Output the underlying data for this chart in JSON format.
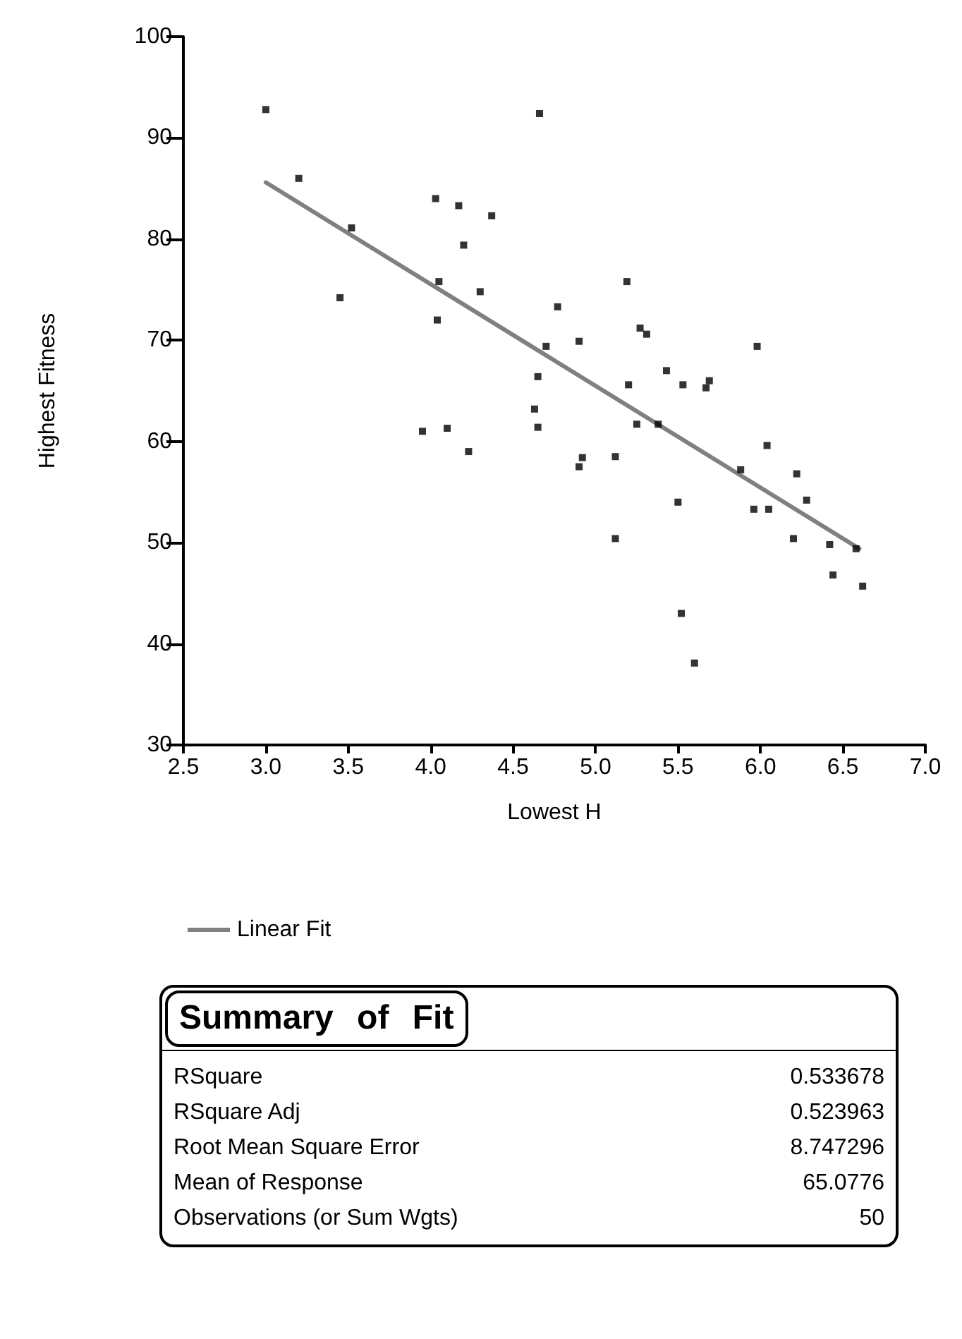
{
  "chart_data": [
    {
      "type": "scatter",
      "xlabel": "Lowest H",
      "ylabel": "Highest Fitness",
      "marker": "square",
      "grid": false,
      "legend": "bottom left",
      "xlim": [
        2.5,
        7.0
      ],
      "xticks": [
        {
          "value": 2.5,
          "label": "2.5"
        },
        {
          "value": 3,
          "label": "3.0"
        },
        {
          "value": 3.5,
          "label": "3.5"
        },
        {
          "value": 4,
          "label": "4.0"
        },
        {
          "value": 4.5,
          "label": "4.5"
        },
        {
          "value": 5,
          "label": "5.0"
        },
        {
          "value": 5.5,
          "label": "5.5"
        },
        {
          "value": 6,
          "label": "6.0"
        },
        {
          "value": 6.5,
          "label": "6.5"
        },
        {
          "value": 7,
          "label": "7.0"
        }
      ],
      "ylim": [
        30,
        100
      ],
      "yticks": [
        30,
        40,
        50,
        60,
        70,
        80,
        90,
        100
      ],
      "series": [
        {
          "color": "#000000",
          "x": [
            3.0,
            3.2,
            3.52,
            3.45,
            3.95,
            4.03,
            4.05,
            4.04,
            4.1,
            4.17,
            4.2,
            4.23,
            4.3,
            4.37,
            4.63,
            4.65,
            4.65,
            4.66,
            4.7,
            4.77,
            4.9,
            4.9,
            4.92,
            5.12,
            5.12,
            5.19,
            5.2,
            5.25,
            5.27,
            5.31,
            5.38,
            5.43,
            5.5,
            5.53,
            5.52,
            5.6,
            5.67,
            5.69,
            5.88,
            5.98,
            5.96,
            6.04,
            6.05,
            6.2,
            6.22,
            6.28,
            6.42,
            6.44,
            6.58,
            6.62
          ],
          "values": [
            92.8,
            86.0,
            81.1,
            74.2,
            61.0,
            84.0,
            75.8,
            72.0,
            61.3,
            83.3,
            79.4,
            59.0,
            74.8,
            82.3,
            63.2,
            61.4,
            66.4,
            92.4,
            69.4,
            73.3,
            69.9,
            57.5,
            58.4,
            58.5,
            50.4,
            75.8,
            65.6,
            61.7,
            71.2,
            70.6,
            61.7,
            67.0,
            54.0,
            65.6,
            43.0,
            38.1,
            65.3,
            66.0,
            57.2,
            69.4,
            53.3,
            59.6,
            53.3,
            50.4,
            56.8,
            54.2,
            49.8,
            46.8,
            49.4,
            45.7
          ]
        },
        {
          "name": "Linear Fit",
          "type": "line",
          "marker": "none",
          "color": "#808080",
          "x": [
            3.0,
            6.6
          ],
          "values": [
            85.6,
            49.4
          ]
        }
      ]
    },
    {
      "type": "other",
      "title": "Summary of Fit",
      "data_labels": true,
      "categories": [
        "RSquare",
        "RSquare Adj",
        "Root Mean Square Error",
        "Mean of Response",
        "Observations (or Sum Wgts)"
      ],
      "values": [
        0.533678,
        0.523963,
        8.747296,
        65.0776,
        50
      ]
    }
  ]
}
